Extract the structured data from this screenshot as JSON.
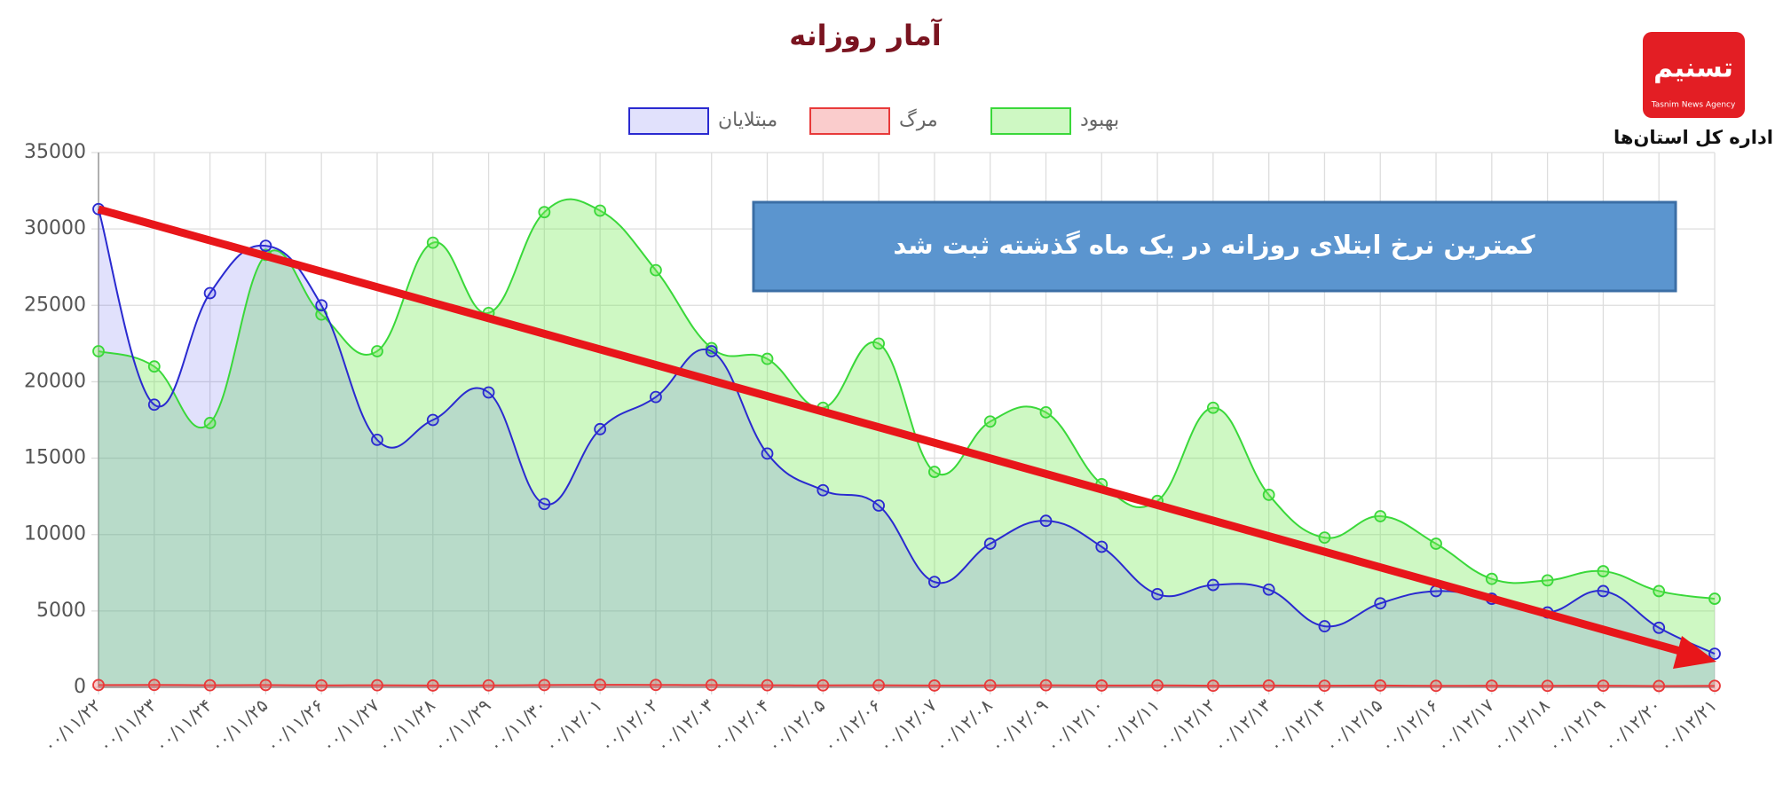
{
  "chart_data": {
    "type": "line",
    "title": "آمار روزانه",
    "categories": [
      "۰۰/۱۱/۲۲",
      "۰۰/۱۱/۲۳",
      "۰۰/۱۱/۲۴",
      "۰۰/۱۱/۲۵",
      "۰۰/۱۱/۲۶",
      "۰۰/۱۱/۲۷",
      "۰۰/۱۱/۲۸",
      "۰۰/۱۱/۲۹",
      "۰۰/۱۱/۳۰",
      "۰۰/۱۲/۰۱",
      "۰۰/۱۲/۰۲",
      "۰۰/۱۲/۰۳",
      "۰۰/۱۲/۰۴",
      "۰۰/۱۲/۰۵",
      "۰۰/۱۲/۰۶",
      "۰۰/۱۲/۰۷",
      "۰۰/۱۲/۰۸",
      "۰۰/۱۲/۰۹",
      "۰۰/۱۲/۱۰",
      "۰۰/۱۲/۱۱",
      "۰۰/۱۲/۱۲",
      "۰۰/۱۲/۱۳",
      "۰۰/۱۲/۱۴",
      "۰۰/۱۲/۱۵",
      "۰۰/۱۲/۱۶",
      "۰۰/۱۲/۱۷",
      "۰۰/۱۲/۱۸",
      "۰۰/۱۲/۱۹",
      "۰۰/۱۲/۲۰",
      "۰۰/۱۲/۲۱"
    ],
    "series": [
      {
        "name": "مبتلایان",
        "color": "#2a2ad0",
        "fill": "rgba(70,70,235,0.16)",
        "values": [
          31300,
          18500,
          25800,
          28900,
          25000,
          16200,
          17500,
          19300,
          12000,
          16900,
          19000,
          22000,
          15300,
          12900,
          11900,
          6900,
          9400,
          10900,
          9200,
          6100,
          6700,
          6400,
          4000,
          5500,
          6300,
          5800,
          4900,
          6300,
          3900,
          2200
        ]
      },
      {
        "name": "مرگ",
        "color": "#e83a3a",
        "fill": "rgba(240,110,110,0.35)",
        "values": [
          150,
          160,
          140,
          150,
          130,
          140,
          120,
          130,
          150,
          170,
          160,
          150,
          140,
          130,
          140,
          120,
          130,
          140,
          120,
          130,
          110,
          120,
          110,
          120,
          100,
          110,
          100,
          110,
          90,
          100
        ]
      },
      {
        "name": "بهبود",
        "color": "#3ad83a",
        "fill": "rgba(120,235,90,0.36)",
        "values": [
          22000,
          21000,
          17300,
          28300,
          24400,
          22000,
          29100,
          24500,
          31100,
          31200,
          27300,
          22200,
          21500,
          18300,
          22500,
          14100,
          17400,
          18000,
          13300,
          12200,
          18300,
          12600,
          9800,
          11200,
          9400,
          7100,
          7000,
          7600,
          6300,
          5800
        ]
      }
    ],
    "ylim": [
      0,
      35000
    ],
    "yticks": [
      0,
      5000,
      10000,
      15000,
      20000,
      25000,
      30000,
      35000
    ],
    "grid": true,
    "annotation": "کمترین نرخ ابتلای روزانه در یک ماه گذشته ثبت شد"
  },
  "logo": {
    "mark": "تسنیم",
    "text": "Tasnim News Agency",
    "caption": "اداره کل استان‌ها"
  }
}
